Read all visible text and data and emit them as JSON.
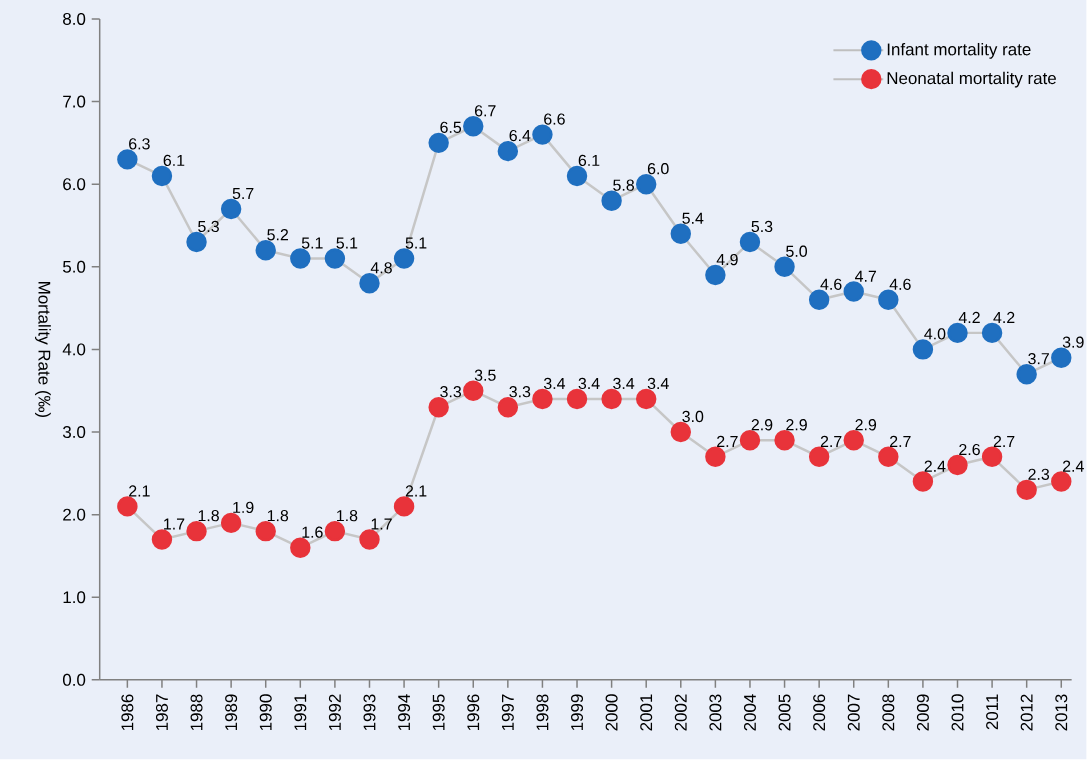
{
  "chart_data": {
    "type": "line",
    "ylabel": "Mortality Rate (‰)",
    "categories": [
      "1986",
      "1987",
      "1988",
      "1989",
      "1990",
      "1991",
      "1992",
      "1993",
      "1994",
      "1995",
      "1996",
      "1997",
      "1998",
      "1999",
      "2000",
      "2001",
      "2002",
      "2003",
      "2004",
      "2005",
      "2006",
      "2007",
      "2008",
      "2009",
      "2010",
      "2011",
      "2012",
      "2013"
    ],
    "series": [
      {
        "name": "Infant mortality rate",
        "color": "#1f6fc0",
        "values": [
          6.3,
          6.1,
          5.3,
          5.7,
          5.2,
          5.1,
          5.1,
          4.8,
          5.1,
          6.5,
          6.7,
          6.4,
          6.6,
          6.1,
          5.8,
          6.0,
          5.4,
          4.9,
          5.3,
          5.0,
          4.6,
          4.7,
          4.6,
          4.0,
          4.2,
          4.2,
          3.7,
          3.9
        ],
        "value_labels": [
          "6.3",
          "6.1",
          "5.3",
          "5.7",
          "5.2",
          "5.1",
          "5.1",
          "4.8",
          "5.1",
          "6.5",
          "6.7",
          "6.4",
          "6.6",
          "6.1",
          "5.8",
          "6.0",
          "5.4",
          "4.9",
          "5.3",
          "5.0",
          "4.6",
          "4.7",
          "4.6",
          "4.0",
          "4.2",
          "4.2",
          "3.7",
          "3.9"
        ]
      },
      {
        "name": "Neonatal mortality rate",
        "color": "#e8333a",
        "values": [
          2.1,
          1.7,
          1.8,
          1.9,
          1.8,
          1.6,
          1.8,
          1.7,
          2.1,
          3.3,
          3.5,
          3.3,
          3.4,
          3.4,
          3.4,
          3.4,
          3.0,
          2.7,
          2.9,
          2.9,
          2.7,
          2.9,
          2.7,
          2.4,
          2.6,
          2.7,
          2.3,
          2.4
        ],
        "value_labels": [
          "2.1",
          "1.7",
          "1.8",
          "1.9",
          "1.8",
          "1.6",
          "1.8",
          "1.7",
          "2.1",
          "3.3",
          "3.5",
          "3.3",
          "3.4",
          "3.4",
          "3.4",
          "3.4",
          "3.0",
          "2.7",
          "2.9",
          "2.9",
          "2.7",
          "2.9",
          "2.7",
          "2.4",
          "2.6",
          "2.7",
          "2.3",
          "2.4"
        ]
      }
    ],
    "ylim": [
      0,
      8
    ],
    "yticks": [
      {
        "value": 0,
        "label": "0.0"
      },
      {
        "value": 1,
        "label": "1.0"
      },
      {
        "value": 2,
        "label": "2.0"
      },
      {
        "value": 3,
        "label": "3.0"
      },
      {
        "value": 4,
        "label": "4.0"
      },
      {
        "value": 5,
        "label": "5.0"
      },
      {
        "value": 6,
        "label": "6.0"
      },
      {
        "value": 7,
        "label": "7.0"
      },
      {
        "value": 8,
        "label": "8.0"
      }
    ],
    "legend": "top right",
    "marker": "circle",
    "line_style": "solid"
  }
}
